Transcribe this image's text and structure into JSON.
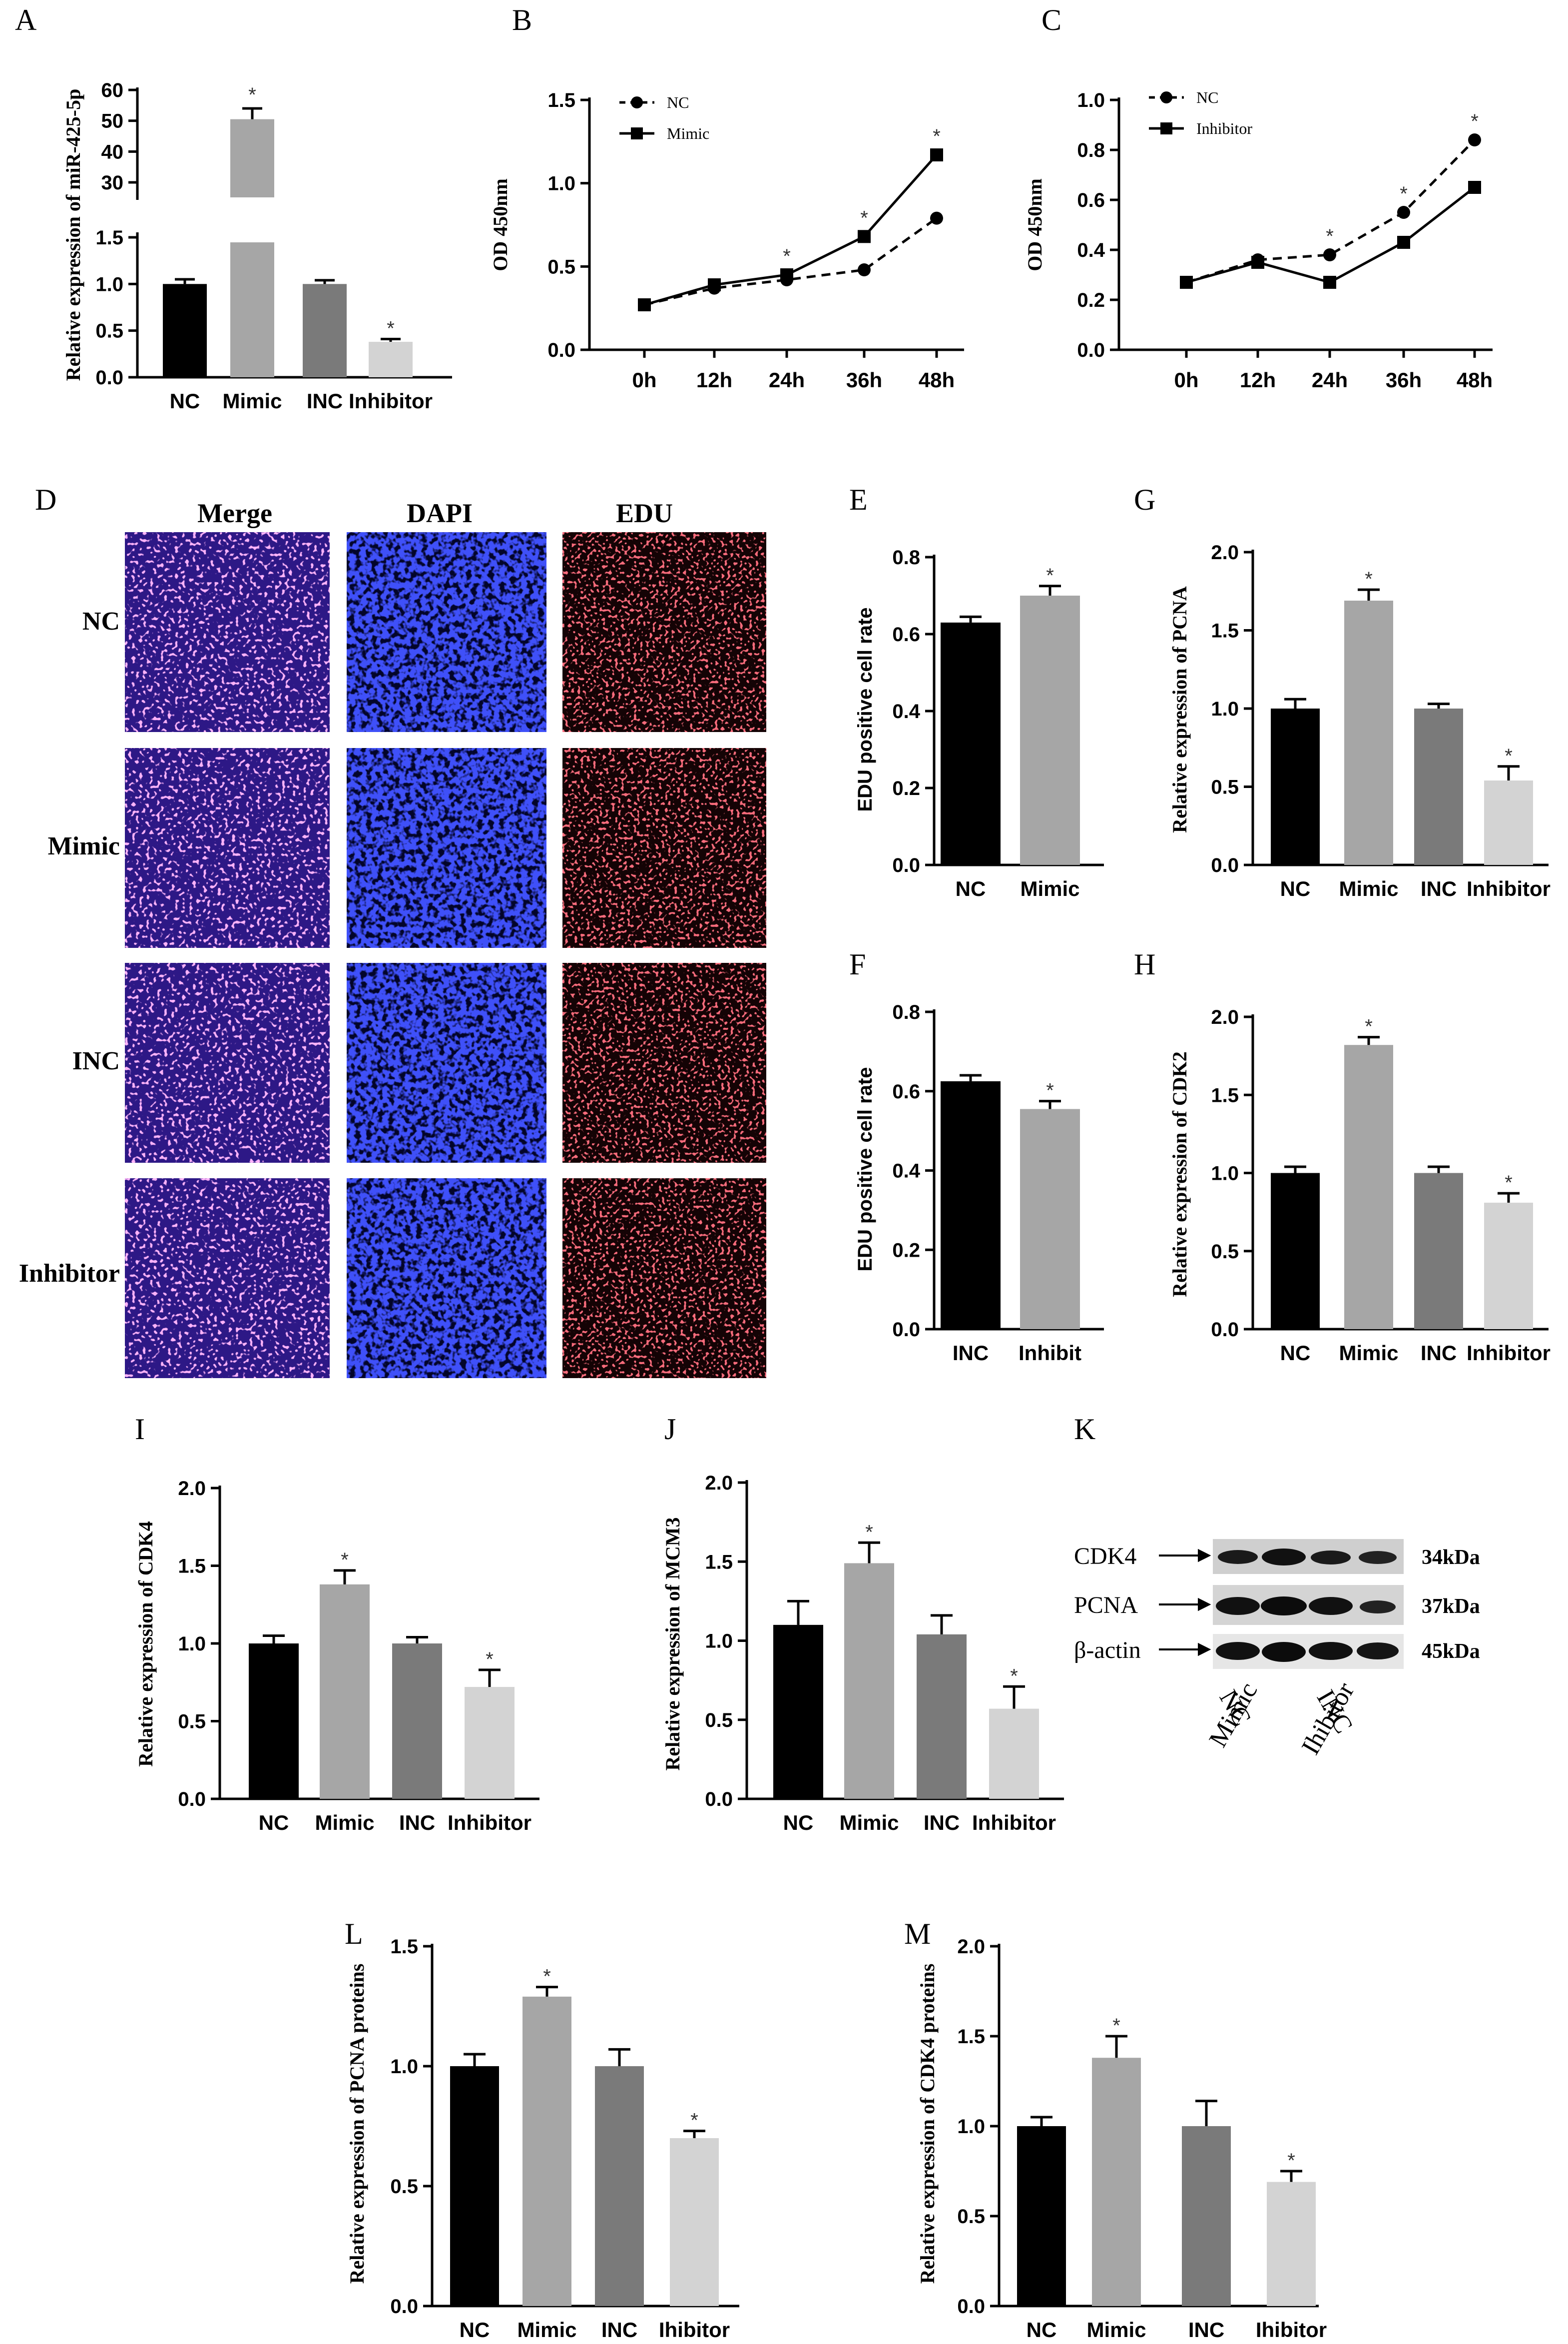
{
  "colors": {
    "NC": "#000000",
    "Mimic": "#a6a6a6",
    "INC": "#7a7a7a",
    "Inhibitor": "#d3d3d3",
    "dapi": "#0a12d8",
    "edu": "#d81a24",
    "merge": "#5a1ec8"
  },
  "chart_data": [
    {
      "id": "A",
      "panel_label": "A",
      "type": "bar",
      "ylabel": "Relative expression of miR-425-5p",
      "categories": [
        "NC",
        "Mimic",
        "INC",
        "Inhibitor"
      ],
      "values": [
        1.0,
        50.5,
        1.0,
        0.38
      ],
      "errors": [
        0.05,
        3.5,
        0.04,
        0.03
      ],
      "significant": [
        false,
        true,
        false,
        true
      ],
      "y_axis_broken": true,
      "lower_ticks": [
        "0.0",
        "0.5",
        "1.0",
        "1.5"
      ],
      "upper_ticks": [
        "30",
        "40",
        "50",
        "60"
      ]
    },
    {
      "id": "B",
      "panel_label": "B",
      "type": "line",
      "ylabel": "OD 450nm",
      "ylim": [
        0,
        1.5
      ],
      "yticks": [
        "0.0",
        "0.5",
        "1.0",
        "1.5"
      ],
      "x": [
        "0h",
        "12h",
        "24h",
        "36h",
        "48h"
      ],
      "series": [
        {
          "name": "NC",
          "values": [
            0.27,
            0.37,
            0.42,
            0.48,
            0.79
          ],
          "style": "dashed-circle"
        },
        {
          "name": "Mimic",
          "values": [
            0.27,
            0.39,
            0.45,
            0.68,
            1.17
          ],
          "style": "solid-square"
        }
      ],
      "significant_x": [
        "24h",
        "36h",
        "48h"
      ]
    },
    {
      "id": "C",
      "panel_label": "C",
      "type": "line",
      "ylabel": "OD 450nm",
      "ylim": [
        0,
        1.0
      ],
      "yticks": [
        "0.0",
        "0.2",
        "0.4",
        "0.6",
        "0.8",
        "1.0"
      ],
      "x": [
        "0h",
        "12h",
        "24h",
        "36h",
        "48h"
      ],
      "series": [
        {
          "name": "NC",
          "values": [
            0.27,
            0.36,
            0.38,
            0.55,
            0.84
          ],
          "style": "dashed-circle"
        },
        {
          "name": "Inhibitor",
          "values": [
            0.27,
            0.35,
            0.27,
            0.43,
            0.65
          ],
          "style": "solid-square"
        }
      ],
      "significant_x": [
        "24h",
        "36h",
        "48h"
      ]
    },
    {
      "id": "E",
      "panel_label": "E",
      "type": "bar",
      "ylabel": "EDU positive cell rate",
      "ylim": [
        0,
        0.8
      ],
      "yticks": [
        "0.0",
        "0.2",
        "0.4",
        "0.6",
        "0.8"
      ],
      "categories": [
        "NC",
        "Mimic"
      ],
      "values": [
        0.63,
        0.7
      ],
      "errors": [
        0.015,
        0.025
      ],
      "significant": [
        false,
        true
      ]
    },
    {
      "id": "F",
      "panel_label": "F",
      "type": "bar",
      "ylabel": "EDU positive cell rate",
      "ylim": [
        0,
        0.8
      ],
      "yticks": [
        "0.0",
        "0.2",
        "0.4",
        "0.6",
        "0.8"
      ],
      "categories": [
        "INC",
        "Inhibit"
      ],
      "values": [
        0.625,
        0.555
      ],
      "errors": [
        0.015,
        0.02
      ],
      "significant": [
        false,
        true
      ]
    },
    {
      "id": "G",
      "panel_label": "G",
      "type": "bar",
      "ylabel": "Relative expression of PCNA",
      "ylim": [
        0,
        2.0
      ],
      "yticks": [
        "0.0",
        "0.5",
        "1.0",
        "1.5",
        "2.0"
      ],
      "categories": [
        "NC",
        "Mimic",
        "INC",
        "Inhibitor"
      ],
      "values": [
        1.0,
        1.69,
        1.0,
        0.54
      ],
      "errors": [
        0.06,
        0.07,
        0.03,
        0.09
      ],
      "significant": [
        false,
        true,
        false,
        true
      ]
    },
    {
      "id": "H",
      "panel_label": "H",
      "type": "bar",
      "ylabel": "Relative expression of CDK2",
      "ylim": [
        0,
        2.0
      ],
      "yticks": [
        "0.0",
        "0.5",
        "1.0",
        "1.5",
        "2.0"
      ],
      "categories": [
        "NC",
        "Mimic",
        "INC",
        "Inhibitor"
      ],
      "values": [
        1.0,
        1.82,
        1.0,
        0.81
      ],
      "errors": [
        0.04,
        0.05,
        0.04,
        0.06
      ],
      "significant": [
        false,
        true,
        false,
        true
      ]
    },
    {
      "id": "I",
      "panel_label": "I",
      "type": "bar",
      "ylabel": "Relative expression of CDK4",
      "ylim": [
        0,
        2.0
      ],
      "yticks": [
        "0.0",
        "0.5",
        "1.0",
        "1.5",
        "2.0"
      ],
      "categories": [
        "NC",
        "Mimic",
        "INC",
        "Inhibitor"
      ],
      "values": [
        1.0,
        1.38,
        1.0,
        0.72
      ],
      "errors": [
        0.05,
        0.09,
        0.04,
        0.11
      ],
      "significant": [
        false,
        true,
        false,
        true
      ]
    },
    {
      "id": "J",
      "panel_label": "J",
      "type": "bar",
      "ylabel": "Relative expression of MCM3",
      "ylim": [
        0,
        2.0
      ],
      "yticks": [
        "0.0",
        "0.5",
        "1.0",
        "1.5",
        "2.0"
      ],
      "categories": [
        "NC",
        "Mimic",
        "INC",
        "Inhibitor"
      ],
      "values": [
        1.1,
        1.49,
        1.04,
        0.57
      ],
      "errors": [
        0.15,
        0.13,
        0.12,
        0.14
      ],
      "significant": [
        false,
        true,
        false,
        true
      ]
    },
    {
      "id": "L",
      "panel_label": "L",
      "type": "bar",
      "ylabel": "Relative expression of PCNA proteins",
      "ylim": [
        0,
        1.5
      ],
      "yticks": [
        "0.0",
        "0.5",
        "1.0",
        "1.5"
      ],
      "categories": [
        "NC",
        "Mimic",
        "INC",
        "Ihibitor"
      ],
      "values": [
        1.0,
        1.29,
        1.0,
        0.7
      ],
      "errors": [
        0.05,
        0.04,
        0.07,
        0.03
      ],
      "significant": [
        false,
        true,
        false,
        true
      ]
    },
    {
      "id": "M",
      "panel_label": "M",
      "type": "bar",
      "ylabel": "Relative expression of CDK4 proteins",
      "ylim": [
        0,
        2.0
      ],
      "yticks": [
        "0.0",
        "0.5",
        "1.0",
        "1.5",
        "2.0"
      ],
      "categories": [
        "NC",
        "Mimic",
        "INC",
        "Ihibitor"
      ],
      "values": [
        1.0,
        1.38,
        1.0,
        0.69
      ],
      "errors": [
        0.05,
        0.12,
        0.14,
        0.06
      ],
      "significant": [
        false,
        true,
        false,
        true
      ]
    }
  ],
  "panel_d": {
    "label": "D",
    "columns": [
      "Merge",
      "DAPI",
      "EDU"
    ],
    "rows": [
      "NC",
      "Mimic",
      "INC",
      "Inhibitor"
    ]
  },
  "panel_k": {
    "label": "K",
    "proteins": [
      "CDK4",
      "PCNA",
      "β-actin"
    ],
    "sizes": [
      "34kDa",
      "37kDa",
      "45kDa"
    ],
    "lanes": [
      "NC",
      "Mimic",
      "INC",
      "Ihibitor"
    ]
  }
}
